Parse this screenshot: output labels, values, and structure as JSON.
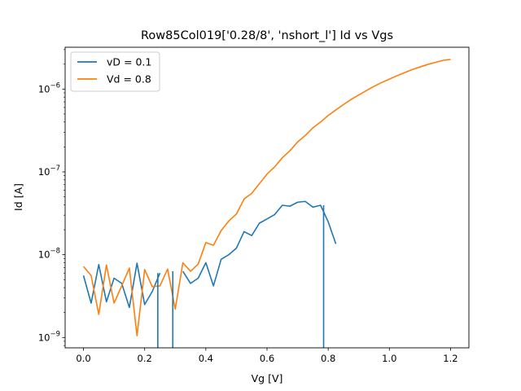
{
  "chart_data": {
    "type": "line",
    "title": "Row85Col019['0.28/8', 'nshort_l'] Id vs Vgs",
    "xlabel": "Vg [V]",
    "ylabel": "Id [A]",
    "xlim": [
      -0.06,
      1.26
    ],
    "ylim": [
      7.5e-10,
      3.2e-06
    ],
    "yscale": "log",
    "legend_position": "upper-left",
    "x_ticks": [
      0.0,
      0.2,
      0.4,
      0.6,
      0.8,
      1.0,
      1.2
    ],
    "x_tick_labels": [
      "0.0",
      "0.2",
      "0.4",
      "0.6",
      "0.8",
      "1.0",
      "1.2"
    ],
    "y_ticks": [
      1e-09,
      1e-08,
      1e-07,
      1e-06
    ],
    "y_tick_labels": [
      {
        "base": "10",
        "exp": "−9"
      },
      {
        "base": "10",
        "exp": "−8"
      },
      {
        "base": "10",
        "exp": "−7"
      },
      {
        "base": "10",
        "exp": "−6"
      }
    ],
    "series": [
      {
        "name": "vD = 0.1",
        "color": "#1f77b4",
        "x": [
          0.0,
          0.025,
          0.05,
          0.075,
          0.1,
          0.125,
          0.15,
          0.175,
          0.2,
          0.225,
          0.25,
          0.275,
          0.3,
          0.325,
          0.35,
          0.375,
          0.4,
          0.425,
          0.45,
          0.475,
          0.5,
          0.525,
          0.55,
          0.575,
          0.6,
          0.625,
          0.65,
          0.675,
          0.7,
          0.725,
          0.75,
          0.775,
          0.8,
          0.825,
          0.85,
          0.875,
          0.9,
          0.925,
          0.95,
          0.975,
          1.0,
          1.025,
          1.05,
          1.075,
          1.1,
          1.125,
          1.15,
          1.175,
          1.2
        ],
        "y": [
          5.6e-09,
          2.6e-09,
          7.6e-09,
          2.7e-09,
          5.2e-09,
          4.5e-09,
          2.3e-09,
          7.9e-09,
          2.5e-09,
          3.6e-09,
          6e-09,
          null,
          null,
          6.3e-09,
          4.5e-09,
          5.2e-09,
          8e-09,
          4.2e-09,
          8.8e-09,
          1e-08,
          1.2e-08,
          1.9e-08,
          1.7e-08,
          2.4e-08,
          2.7e-08,
          3.05e-08,
          3.95e-08,
          3.85e-08,
          4.3e-08,
          4.4e-08,
          3.75e-08,
          3.95e-08,
          2.5e-08,
          1.35e-08,
          null,
          null,
          null,
          null,
          null,
          null,
          null,
          null,
          null,
          null,
          null,
          null,
          null,
          null,
          null
        ]
      },
      {
        "name": "Vd = 0.8",
        "color": "#ff7f0e",
        "x": [
          0.0,
          0.025,
          0.05,
          0.075,
          0.1,
          0.125,
          0.15,
          0.175,
          0.2,
          0.225,
          0.25,
          0.275,
          0.3,
          0.325,
          0.35,
          0.375,
          0.4,
          0.425,
          0.45,
          0.475,
          0.5,
          0.525,
          0.55,
          0.575,
          0.6,
          0.625,
          0.65,
          0.675,
          0.7,
          0.725,
          0.75,
          0.775,
          0.8,
          0.825,
          0.85,
          0.875,
          0.9,
          0.925,
          0.95,
          0.975,
          1.0,
          1.025,
          1.05,
          1.075,
          1.1,
          1.125,
          1.15,
          1.175,
          1.2
        ],
        "y": [
          7.2e-09,
          5.6e-09,
          1.9e-09,
          7.5e-09,
          2.6e-09,
          4.2e-09,
          6.9e-09,
          1.05e-09,
          6.6e-09,
          4.1e-09,
          4.2e-09,
          6.7e-09,
          2.2e-09,
          8e-09,
          6.3e-09,
          7.7e-09,
          1.4e-08,
          1.3e-08,
          1.95e-08,
          2.55e-08,
          3.1e-08,
          4.7e-08,
          5.5e-08,
          7.2e-08,
          9.4e-08,
          1.15e-07,
          1.48e-07,
          1.8e-07,
          2.3e-07,
          2.75e-07,
          3.4e-07,
          4e-07,
          4.8e-07,
          5.6e-07,
          6.5e-07,
          7.5e-07,
          8.5e-07,
          9.6e-07,
          1.08e-06,
          1.2e-06,
          1.32e-06,
          1.45e-06,
          1.58e-06,
          1.72e-06,
          1.85e-06,
          1.98e-06,
          2.1e-06,
          2.22e-06,
          2.28e-06
        ]
      }
    ],
    "blue_drops": [
      0.243,
      0.292,
      0.785
    ]
  }
}
